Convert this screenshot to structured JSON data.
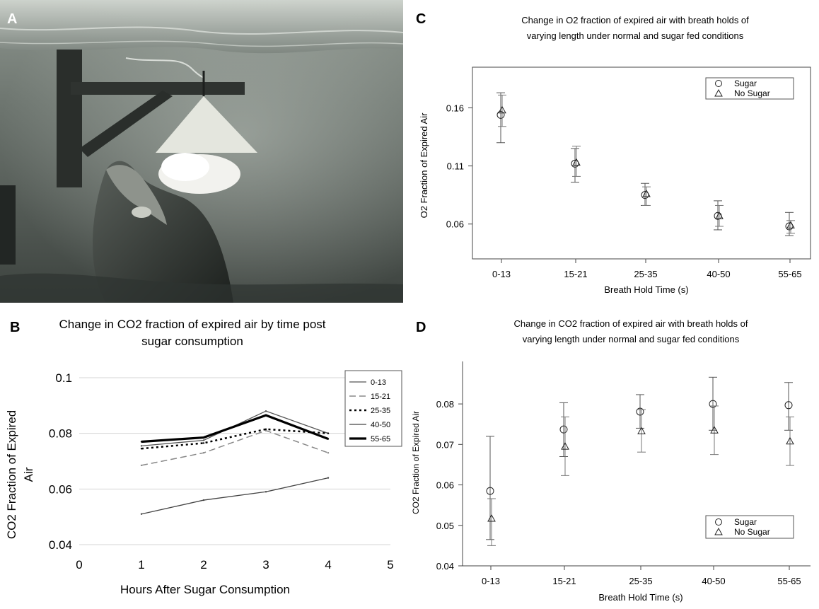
{
  "panel_labels": {
    "a": "A",
    "b": "B",
    "c": "C",
    "d": "D"
  },
  "chart_data": [
    {
      "panel": "B",
      "type": "line",
      "title_lines": [
        "Change in CO2 fraction of expired air by time post",
        "sugar consumption"
      ],
      "xlabel": "Hours After Sugar Consumption",
      "ylabel_lines": [
        "CO2 Fraction of Expired",
        "Air"
      ],
      "xlim": [
        0,
        5
      ],
      "ylim": [
        0.04,
        0.1
      ],
      "x_ticks": [
        "0",
        "1",
        "2",
        "3",
        "4",
        "5"
      ],
      "y_ticks": [
        "0.04",
        "0.06",
        "0.08",
        "0.1"
      ],
      "x": [
        1,
        2,
        3,
        4
      ],
      "legend_position": "top-right",
      "series": [
        {
          "name": "0-13",
          "values": [
            0.0755,
            0.0775,
            0.088,
            0.08
          ],
          "color": "#555555",
          "style": "solid-thin"
        },
        {
          "name": "15-21",
          "values": [
            0.0685,
            0.073,
            0.081,
            0.073
          ],
          "color": "#888888",
          "style": "dashed"
        },
        {
          "name": "25-35",
          "values": [
            0.0745,
            0.0765,
            0.0815,
            0.08
          ],
          "color": "#000000",
          "style": "dotted"
        },
        {
          "name": "40-50",
          "values": [
            0.051,
            0.056,
            0.059,
            0.064
          ],
          "color": "#444444",
          "style": "solid-thin"
        },
        {
          "name": "55-65",
          "values": [
            0.077,
            0.0785,
            0.0865,
            0.078
          ],
          "color": "#000000",
          "style": "solid-thick"
        }
      ]
    },
    {
      "panel": "C",
      "type": "scatter",
      "title_lines": [
        "Change in O2 fraction of expired air with breath holds of",
        "varying length under normal and sugar fed conditions"
      ],
      "xlabel": "Breath Hold Time (s)",
      "ylabel": "O2 Fraction of Expired Air",
      "categories": [
        "0-13",
        "15-21",
        "25-35",
        "40-50",
        "55-65"
      ],
      "y_ticks": [
        "0.06",
        "0.11",
        "0.16"
      ],
      "ylim": [
        0.03,
        0.195
      ],
      "legend_position": "top-right",
      "series": [
        {
          "name": "Sugar",
          "marker": "circle",
          "values": [
            0.154,
            0.112,
            0.085,
            0.067,
            0.058
          ],
          "err_low": [
            0.13,
            0.096,
            0.076,
            0.055,
            0.05
          ],
          "err_high": [
            0.173,
            0.125,
            0.095,
            0.08,
            0.07
          ]
        },
        {
          "name": "No Sugar",
          "marker": "triangle",
          "values": [
            0.158,
            0.113,
            0.086,
            0.067,
            0.059
          ],
          "err_low": [
            0.144,
            0.101,
            0.076,
            0.058,
            0.052
          ],
          "err_high": [
            0.171,
            0.127,
            0.092,
            0.076,
            0.063
          ]
        }
      ]
    },
    {
      "panel": "D",
      "type": "scatter",
      "title_lines": [
        "Change in CO2 fraction of expired air with breath holds of",
        "varying length under normal and sugar fed conditions"
      ],
      "xlabel": "Breath Hold Time (s)",
      "ylabel": "CO2 Fraction of Expired Air",
      "categories": [
        "0-13",
        "15-21",
        "25-35",
        "40-50",
        "55-65"
      ],
      "y_ticks": [
        "0.04",
        "0.05",
        "0.06",
        "0.07",
        "0.08"
      ],
      "ylim": [
        0.04,
        0.0905
      ],
      "legend_position": "bottom-right",
      "series": [
        {
          "name": "Sugar",
          "marker": "circle",
          "values": [
            0.0585,
            0.0737,
            0.0781,
            0.08,
            0.0797
          ],
          "err_low": [
            0.0465,
            0.067,
            0.074,
            0.0735,
            0.0735
          ],
          "err_high": [
            0.072,
            0.0803,
            0.0823,
            0.0866,
            0.0853
          ]
        },
        {
          "name": "No Sugar",
          "marker": "triangle",
          "values": [
            0.0517,
            0.0695,
            0.0733,
            0.0735,
            0.0708
          ],
          "err_low": [
            0.045,
            0.0623,
            0.0681,
            0.0675,
            0.0648
          ],
          "err_high": [
            0.0566,
            0.0768,
            0.0786,
            0.0795,
            0.0768
          ]
        }
      ]
    }
  ]
}
